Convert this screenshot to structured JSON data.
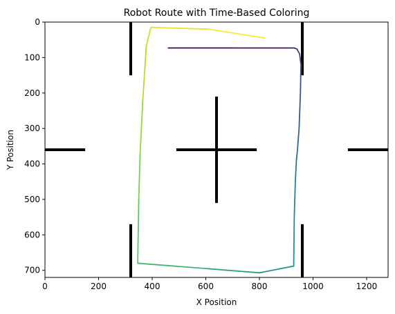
{
  "chart_data": {
    "type": "line",
    "title": "Robot Route with Time-Based Coloring",
    "xlabel": "X Position",
    "ylabel": "Y Position",
    "xlim": [
      0,
      1280
    ],
    "ylim": [
      720,
      0
    ],
    "y_inverted": true,
    "grid": false,
    "legend": "none",
    "colormap": "viridis",
    "xticks": [
      "0",
      "200",
      "400",
      "600",
      "800",
      "1000",
      "1200"
    ],
    "xtick_values": [
      0,
      200,
      400,
      600,
      800,
      1000,
      1200
    ],
    "yticks": [
      "0",
      "100",
      "200",
      "300",
      "400",
      "500",
      "600",
      "700"
    ],
    "ytick_values": [
      0,
      100,
      200,
      300,
      400,
      500,
      600,
      700
    ],
    "series": [
      {
        "x": [
          460,
          700,
          920,
          930,
          940,
          950,
          955,
          953,
          948,
          942,
          938,
          934,
          930,
          928,
          800,
          600,
          346,
          350,
          355,
          365,
          378,
          395,
          610,
          820
        ],
        "y": [
          73,
          73,
          73,
          73,
          76,
          90,
          120,
          200,
          300,
          360,
          390,
          450,
          550,
          688,
          707,
          695,
          680,
          500,
          370,
          220,
          68,
          15,
          20,
          45
        ]
      }
    ],
    "obstacles": [
      {
        "x": [
          320,
          320
        ],
        "y": [
          0,
          150
        ]
      },
      {
        "x": [
          960,
          960
        ],
        "y": [
          0,
          150
        ]
      },
      {
        "x": [
          320,
          320
        ],
        "y": [
          570,
          720
        ]
      },
      {
        "x": [
          960,
          960
        ],
        "y": [
          570,
          720
        ]
      },
      {
        "x": [
          0,
          150
        ],
        "y": [
          360,
          360
        ]
      },
      {
        "x": [
          1130,
          1280
        ],
        "y": [
          360,
          360
        ]
      },
      {
        "x": [
          490,
          790
        ],
        "y": [
          360,
          360
        ]
      },
      {
        "x": [
          640,
          640
        ],
        "y": [
          210,
          510
        ]
      }
    ],
    "colors": {
      "obstacle": "#000000",
      "axes": "#000000"
    }
  }
}
